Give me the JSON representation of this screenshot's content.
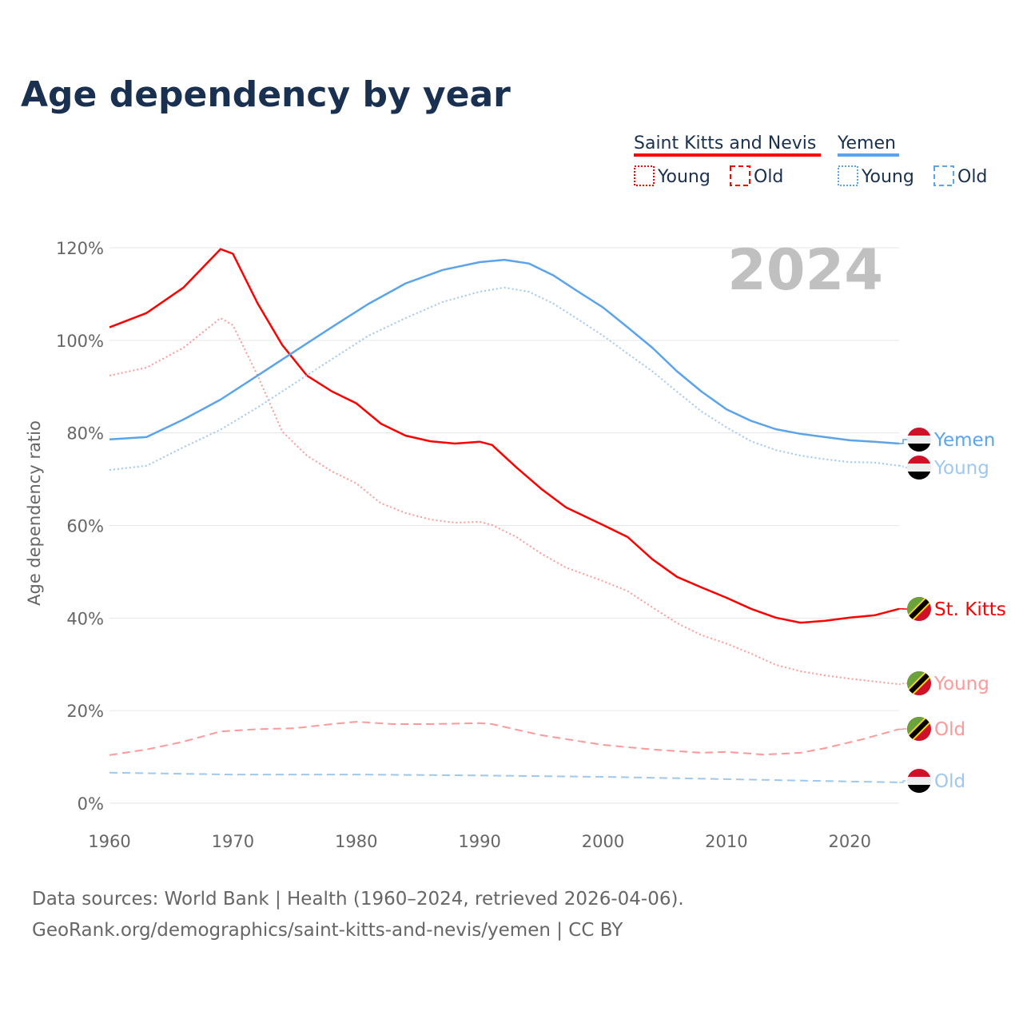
{
  "chart_data": {
    "type": "line",
    "title": "Age dependency by year",
    "ylabel": "Age dependency ratio",
    "xlabel": "",
    "xlim": [
      1960,
      2024
    ],
    "ylim": [
      0,
      120
    ],
    "x_ticks": [
      "1960",
      "1970",
      "1980",
      "1990",
      "2000",
      "2010",
      "2020"
    ],
    "y_ticks": [
      "0%",
      "20%",
      "40%",
      "60%",
      "80%",
      "100%",
      "120%"
    ],
    "year_watermark": "2024",
    "grid": true,
    "legend": {
      "position": "top-right",
      "groups": [
        {
          "name": "Saint Kitts and Nevis",
          "color": "#ff0000",
          "items": [
            "Young",
            "Old"
          ]
        },
        {
          "name": "Yemen",
          "color": "#5ba3ea",
          "items": [
            "Young",
            "Old"
          ]
        }
      ]
    },
    "series": [
      {
        "name": "Saint Kitts and Nevis",
        "label": "St. Kitts",
        "flag": "kn",
        "style": "solid",
        "color": "#ff0000",
        "x": [
          1960,
          1963,
          1966,
          1969,
          1970,
          1972,
          1974,
          1976,
          1978,
          1980,
          1982,
          1984,
          1986,
          1988,
          1990,
          1991,
          1993,
          1995,
          1997,
          2000,
          2002,
          2004,
          2006,
          2008,
          2010,
          2012,
          2014,
          2016,
          2018,
          2020,
          2022,
          2024
        ],
        "y": [
          102.8,
          105.9,
          111.4,
          119.7,
          118.7,
          108,
          99,
          92.4,
          89,
          86.4,
          82,
          79.4,
          78.2,
          77.7,
          78.1,
          77.4,
          72.5,
          67.9,
          63.9,
          60.1,
          57.5,
          52.7,
          48.9,
          46.6,
          44.4,
          42,
          40.1,
          39,
          39.4,
          40.1,
          40.6,
          42
        ]
      },
      {
        "name": "Saint Kitts and Nevis Young",
        "label": "Young",
        "flag": "kn",
        "style": "dotted",
        "color": "#ff9999",
        "x": [
          1960,
          1963,
          1966,
          1969,
          1970,
          1972,
          1974,
          1976,
          1978,
          1980,
          1982,
          1984,
          1986,
          1988,
          1990,
          1991,
          1993,
          1995,
          1997,
          2000,
          2002,
          2004,
          2006,
          2008,
          2010,
          2012,
          2014,
          2016,
          2018,
          2020,
          2022,
          2024
        ],
        "y": [
          92.4,
          94.1,
          98.4,
          104.8,
          103.3,
          92.4,
          80.3,
          75.1,
          71.7,
          69.1,
          64.8,
          62.7,
          61.3,
          60.6,
          60.8,
          60.1,
          57.5,
          53.9,
          50.9,
          48,
          45.8,
          42.3,
          38.9,
          36.3,
          34.5,
          32.3,
          29.9,
          28.5,
          27.6,
          26.9,
          26.3,
          25.7
        ]
      },
      {
        "name": "Saint Kitts and Nevis Old",
        "label": "Old",
        "flag": "kn",
        "style": "dashed",
        "color": "#ff9999",
        "x": [
          1960,
          1963,
          1966,
          1969,
          1972,
          1975,
          1978,
          1980,
          1983,
          1986,
          1990,
          1991,
          1995,
          2000,
          2004,
          2008,
          2010,
          2013,
          2016,
          2018,
          2021,
          2024
        ],
        "y": [
          10.4,
          11.6,
          13.3,
          15.5,
          16,
          16.2,
          17.1,
          17.6,
          17.1,
          17.1,
          17.3,
          17.1,
          14.7,
          12.6,
          11.6,
          10.9,
          11.1,
          10.5,
          10.9,
          11.9,
          13.8,
          16
        ]
      },
      {
        "name": "Yemen",
        "label": "Yemen",
        "flag": "ye",
        "style": "solid",
        "color": "#5ba3ea",
        "x": [
          1960,
          1963,
          1966,
          1969,
          1972,
          1975,
          1978,
          1981,
          1984,
          1987,
          1990,
          1992,
          1994,
          1996,
          1998,
          2000,
          2002,
          2004,
          2006,
          2008,
          2010,
          2012,
          2014,
          2016,
          2018,
          2020,
          2022,
          2024
        ],
        "y": [
          78.6,
          79.1,
          82.9,
          87.2,
          92.4,
          97.6,
          102.8,
          107.9,
          112.3,
          115.2,
          116.9,
          117.4,
          116.6,
          114,
          110.5,
          107.1,
          102.8,
          98.4,
          93.3,
          88.9,
          85.1,
          82.6,
          80.8,
          79.8,
          79.1,
          78.4,
          78.1,
          77.7
        ]
      },
      {
        "name": "Yemen Young",
        "label": "Young",
        "flag": "ye",
        "style": "dotted",
        "color": "#9fc8f0",
        "x": [
          1960,
          1963,
          1966,
          1969,
          1972,
          1975,
          1978,
          1981,
          1984,
          1987,
          1990,
          1992,
          1994,
          1996,
          1998,
          2000,
          2002,
          2004,
          2006,
          2008,
          2010,
          2012,
          2014,
          2016,
          2018,
          2020,
          2022,
          2024
        ],
        "y": [
          72,
          72.9,
          76.9,
          80.7,
          85.5,
          90.7,
          95.9,
          101,
          104.8,
          108.3,
          110.5,
          111.4,
          110.5,
          107.9,
          104.5,
          101,
          97.1,
          93.3,
          88.9,
          84.6,
          81.2,
          78.2,
          76.3,
          75.1,
          74.3,
          73.7,
          73.6,
          72.9
        ]
      },
      {
        "name": "Yemen Old",
        "label": "Old",
        "flag": "ye",
        "style": "dashed",
        "color": "#9fc8f0",
        "x": [
          1960,
          1970,
          1980,
          1990,
          2000,
          2010,
          2020,
          2024
        ],
        "y": [
          6.6,
          6.2,
          6.2,
          6,
          5.7,
          5.2,
          4.7,
          4.5
        ]
      }
    ]
  },
  "footer": {
    "line1": "Data sources: World Bank | Health (1960–2024, retrieved 2026-04-06).",
    "line2": "GeoRank.org/demographics/saint-kitts-and-nevis/yemen | CC BY"
  }
}
